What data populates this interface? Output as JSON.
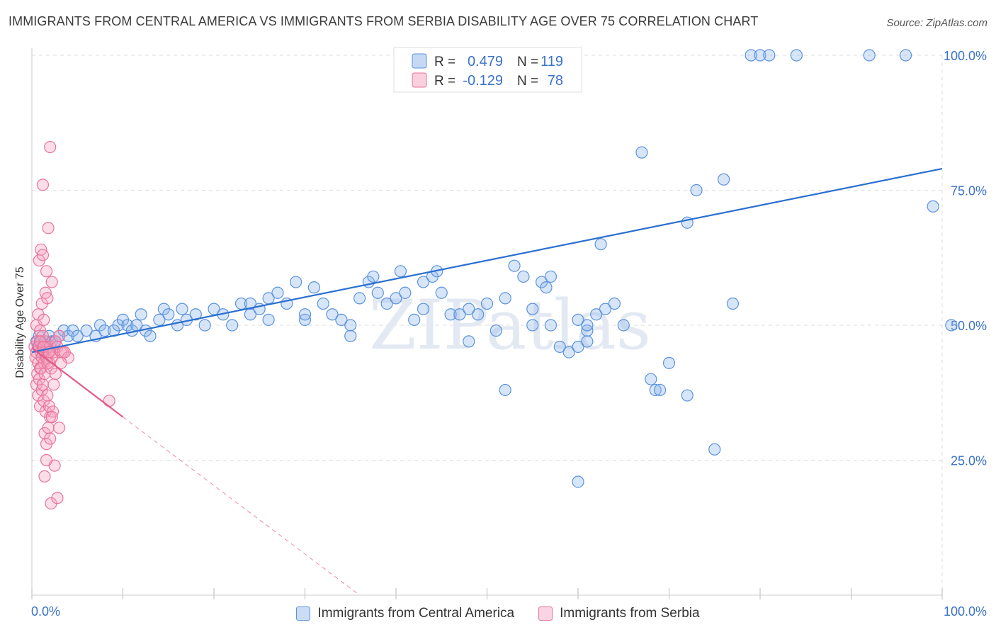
{
  "title": "IMMIGRANTS FROM CENTRAL AMERICA VS IMMIGRANTS FROM SERBIA DISABILITY AGE OVER 75 CORRELATION CHART",
  "source": "Source: ZipAtlas.com",
  "watermark": "ZIPatlas",
  "colors": {
    "blue_fill": "rgba(140,180,235,0.35)",
    "blue_stroke": "#5b93de",
    "blue_line": "#2a6fd0",
    "pink_fill": "rgba(245,160,190,0.35)",
    "pink_stroke": "#e8739c",
    "pink_line": "#e05a8a",
    "axis_text": "#3a72c8",
    "grid": "#dddddd"
  },
  "chart_data": {
    "type": "scatter",
    "xlabel": "",
    "ylabel": "Disability Age Over 75",
    "xlim": [
      0,
      100
    ],
    "ylim": [
      0,
      100
    ],
    "x_tick_labels": [
      "0.0%",
      "100.0%"
    ],
    "y_tick_labels": [
      "25.0%",
      "50.0%",
      "75.0%",
      "100.0%"
    ],
    "y_tick_values": [
      25,
      50,
      75,
      100
    ],
    "legend": [
      {
        "name": "Immigrants from Central America",
        "R": "0.479",
        "N": "119",
        "r_label": "R =",
        "n_label": "N ="
      },
      {
        "name": "Immigrants from Serbia",
        "R": "-0.129",
        "N": "78",
        "r_label": "R =",
        "n_label": "N ="
      }
    ],
    "series": [
      {
        "name": "Immigrants from Central America",
        "trend": {
          "x0": 0,
          "y0": 45.0,
          "x1": 100,
          "y1": 79.0
        },
        "points": [
          [
            0.5,
            47
          ],
          [
            0.7,
            46
          ],
          [
            0.8,
            48
          ],
          [
            1,
            47
          ],
          [
            1.2,
            45
          ],
          [
            1.4,
            47
          ],
          [
            1.6,
            46
          ],
          [
            1.9,
            48
          ],
          [
            2.2,
            47
          ],
          [
            2.5,
            47
          ],
          [
            3,
            48
          ],
          [
            3.5,
            49
          ],
          [
            4,
            48
          ],
          [
            4.5,
            49
          ],
          [
            5,
            48
          ],
          [
            6,
            49
          ],
          [
            7,
            48
          ],
          [
            7.5,
            50
          ],
          [
            8,
            49
          ],
          [
            9,
            49
          ],
          [
            9.5,
            50
          ],
          [
            10,
            51
          ],
          [
            10.5,
            50
          ],
          [
            11,
            49
          ],
          [
            11.5,
            50
          ],
          [
            12,
            52
          ],
          [
            12.5,
            49
          ],
          [
            13,
            48
          ],
          [
            14,
            51
          ],
          [
            14.5,
            53
          ],
          [
            15,
            52
          ],
          [
            16,
            50
          ],
          [
            16.5,
            53
          ],
          [
            17,
            51
          ],
          [
            18,
            52
          ],
          [
            19,
            50
          ],
          [
            20,
            53
          ],
          [
            21,
            52
          ],
          [
            22,
            50
          ],
          [
            23,
            54
          ],
          [
            24,
            52
          ],
          [
            25,
            53
          ],
          [
            26,
            51
          ],
          [
            27,
            56
          ],
          [
            28,
            54
          ],
          [
            29,
            58
          ],
          [
            30,
            51
          ],
          [
            31,
            57
          ],
          [
            32,
            54
          ],
          [
            33,
            52
          ],
          [
            34,
            51
          ],
          [
            35,
            48
          ],
          [
            36,
            55
          ],
          [
            37,
            58
          ],
          [
            37.5,
            59
          ],
          [
            38,
            56
          ],
          [
            39,
            54
          ],
          [
            40,
            55
          ],
          [
            40.5,
            60
          ],
          [
            41,
            56
          ],
          [
            42,
            51
          ],
          [
            43,
            58
          ],
          [
            44,
            59
          ],
          [
            44.5,
            60
          ],
          [
            45,
            56
          ],
          [
            46,
            52
          ],
          [
            47,
            52
          ],
          [
            48,
            47
          ],
          [
            49,
            52
          ],
          [
            50,
            54
          ],
          [
            51,
            49
          ],
          [
            52,
            55
          ],
          [
            53,
            61
          ],
          [
            54,
            59
          ],
          [
            55,
            50
          ],
          [
            56,
            58
          ],
          [
            56.5,
            57
          ],
          [
            57,
            59
          ],
          [
            58,
            46
          ],
          [
            59,
            45
          ],
          [
            60,
            51
          ],
          [
            61,
            49
          ],
          [
            62,
            52
          ],
          [
            62.5,
            65
          ],
          [
            63,
            53
          ],
          [
            64,
            54
          ],
          [
            65,
            50
          ],
          [
            68,
            40
          ],
          [
            68.5,
            38
          ],
          [
            69,
            38
          ],
          [
            70,
            43
          ],
          [
            72,
            69
          ],
          [
            73,
            75
          ],
          [
            75,
            27
          ],
          [
            76,
            77
          ],
          [
            77,
            54
          ],
          [
            79,
            100
          ],
          [
            80,
            100
          ],
          [
            81,
            100
          ],
          [
            84,
            100
          ],
          [
            92,
            100
          ],
          [
            96,
            100
          ],
          [
            101,
            50
          ],
          [
            52,
            38
          ],
          [
            55,
            53
          ],
          [
            60,
            46
          ],
          [
            57,
            50
          ],
          [
            61,
            47
          ],
          [
            43,
            53
          ],
          [
            61,
            50
          ],
          [
            48,
            53
          ],
          [
            24,
            54
          ],
          [
            35,
            50
          ],
          [
            30,
            52
          ],
          [
            26,
            55
          ],
          [
            67,
            82
          ],
          [
            60,
            21
          ],
          [
            72,
            37
          ],
          [
            99,
            72
          ]
        ]
      },
      {
        "name": "Immigrants from Serbia",
        "trend": {
          "x0": 0,
          "y0": 45.8,
          "x1": 10,
          "y1": 33.0,
          "dash_x1": 36,
          "dash_y1": 0
        },
        "points": [
          [
            0.3,
            46
          ],
          [
            0.4,
            44
          ],
          [
            0.5,
            45
          ],
          [
            0.6,
            47
          ],
          [
            0.7,
            43
          ],
          [
            0.8,
            46
          ],
          [
            0.9,
            42
          ],
          [
            1,
            45
          ],
          [
            1.1,
            44
          ],
          [
            1.2,
            46
          ],
          [
            1.3,
            43
          ],
          [
            1.4,
            45
          ],
          [
            1.5,
            47
          ],
          [
            1.6,
            44
          ],
          [
            1.7,
            46
          ],
          [
            1.8,
            45
          ],
          [
            1.9,
            43
          ],
          [
            2,
            46
          ],
          [
            2.2,
            44
          ],
          [
            2.4,
            45
          ],
          [
            2.6,
            47
          ],
          [
            2.8,
            46
          ],
          [
            3,
            48
          ],
          [
            3.2,
            45
          ],
          [
            3.4,
            45
          ],
          [
            0.5,
            39
          ],
          [
            0.7,
            37
          ],
          [
            0.9,
            35
          ],
          [
            1.1,
            38
          ],
          [
            1.3,
            36
          ],
          [
            1.5,
            34
          ],
          [
            1.7,
            37
          ],
          [
            1.9,
            35
          ],
          [
            2,
            33
          ],
          [
            2.3,
            34
          ],
          [
            0.6,
            41
          ],
          [
            0.8,
            40
          ],
          [
            1,
            42
          ],
          [
            1.2,
            39
          ],
          [
            1.4,
            41
          ],
          [
            0.5,
            50
          ],
          [
            0.7,
            52
          ],
          [
            0.9,
            49
          ],
          [
            1.1,
            54
          ],
          [
            1.3,
            51
          ],
          [
            1.5,
            56
          ],
          [
            1.7,
            55
          ],
          [
            0.8,
            62
          ],
          [
            1,
            64
          ],
          [
            1.2,
            63
          ],
          [
            1.8,
            68
          ],
          [
            2,
            83
          ],
          [
            1.2,
            76
          ],
          [
            1.6,
            60
          ],
          [
            2.2,
            58
          ],
          [
            1.4,
            30
          ],
          [
            1.6,
            28
          ],
          [
            1.8,
            31
          ],
          [
            2,
            29
          ],
          [
            3,
            31
          ],
          [
            2.5,
            24
          ],
          [
            1.4,
            22
          ],
          [
            2.1,
            17
          ],
          [
            2.8,
            18
          ],
          [
            1.6,
            25
          ],
          [
            2.2,
            33
          ],
          [
            4,
            44
          ],
          [
            3.6,
            45
          ],
          [
            3.2,
            43
          ],
          [
            2.4,
            39
          ],
          [
            8.5,
            36
          ],
          [
            1.2,
            48
          ],
          [
            0.9,
            47
          ],
          [
            1.3,
            46
          ],
          [
            1.7,
            43
          ],
          [
            2.1,
            42
          ],
          [
            2.6,
            41
          ],
          [
            1.9,
            45
          ]
        ]
      }
    ]
  }
}
